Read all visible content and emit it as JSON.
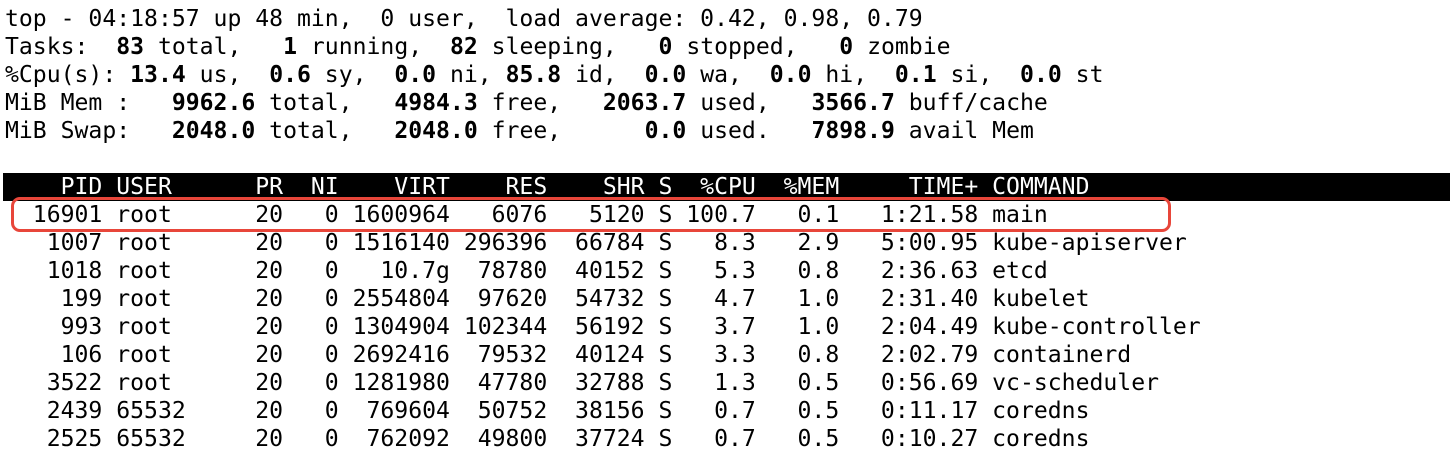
{
  "summary": {
    "uptime_line": "top - 04:18:57 up 48 min,  0 user,  load average: 0.42, 0.98, 0.79",
    "tasks": {
      "prefix": "Tasks: ",
      "total": " 83",
      "total_label": " total,   ",
      "running": "1",
      "running_label": " running,  ",
      "sleeping": "82",
      "sleeping_label": " sleeping,   ",
      "stopped": "0",
      "stopped_label": " stopped,   ",
      "zombie": "0",
      "zombie_label": " zombie"
    },
    "cpu": {
      "prefix": "%Cpu(s): ",
      "us": "13.4",
      "us_label": " us,  ",
      "sy": "0.6",
      "sy_label": " sy,  ",
      "ni": "0.0",
      "ni_label": " ni, ",
      "id": "85.8",
      "id_label": " id,  ",
      "wa": "0.0",
      "wa_label": " wa,  ",
      "hi": "0.0",
      "hi_label": " hi,  ",
      "si": "0.1",
      "si_label": " si,  ",
      "st": "0.0",
      "st_label": " st"
    },
    "mem": {
      "prefix": "MiB Mem :   ",
      "total": "9962.6",
      "total_label": " total,   ",
      "free": "4984.3",
      "free_label": " free,   ",
      "used": "2063.7",
      "used_label": " used,   ",
      "buff": "3566.7",
      "buff_label": " buff/cache"
    },
    "swap": {
      "prefix": "MiB Swap:   ",
      "total": "2048.0",
      "total_label": " total,   ",
      "free": "2048.0",
      "free_label": " free,      ",
      "used": "0.0",
      "used_label": " used.   ",
      "avail": "7898.9",
      "avail_label": " avail Mem"
    }
  },
  "table": {
    "header": "    PID USER      PR  NI    VIRT    RES    SHR S  %CPU  %MEM     TIME+ COMMAND",
    "rows": [
      "  16901 root      20   0 1600964   6076   5120 S 100.7   0.1   1:21.58 main",
      "   1007 root      20   0 1516140 296396  66784 S   8.3   2.9   5:00.95 kube-apiserver",
      "   1018 root      20   0   10.7g  78780  40152 S   5.3   0.8   2:36.63 etcd",
      "    199 root      20   0 2554804  97620  54732 S   4.7   1.0   2:31.40 kubelet",
      "    993 root      20   0 1304904 102344  56192 S   3.7   1.0   2:04.49 kube-controller",
      "    106 root      20   0 2692416  79532  40124 S   3.3   0.8   2:02.79 containerd",
      "   3522 root      20   0 1281980  47780  32788 S   1.3   0.5   0:56.69 vc-scheduler",
      "   2439 65532     20   0  769604  50752  38156 S   0.7   0.5   0:11.17 coredns",
      "   2525 65532     20   0  762092  49800  37724 S   0.7   0.5   0:10.27 coredns"
    ]
  },
  "colors": {
    "background": "#ffffff",
    "text": "#000000",
    "header_bg": "#000000",
    "header_text": "#ffffff",
    "highlight": "#e8463a"
  }
}
